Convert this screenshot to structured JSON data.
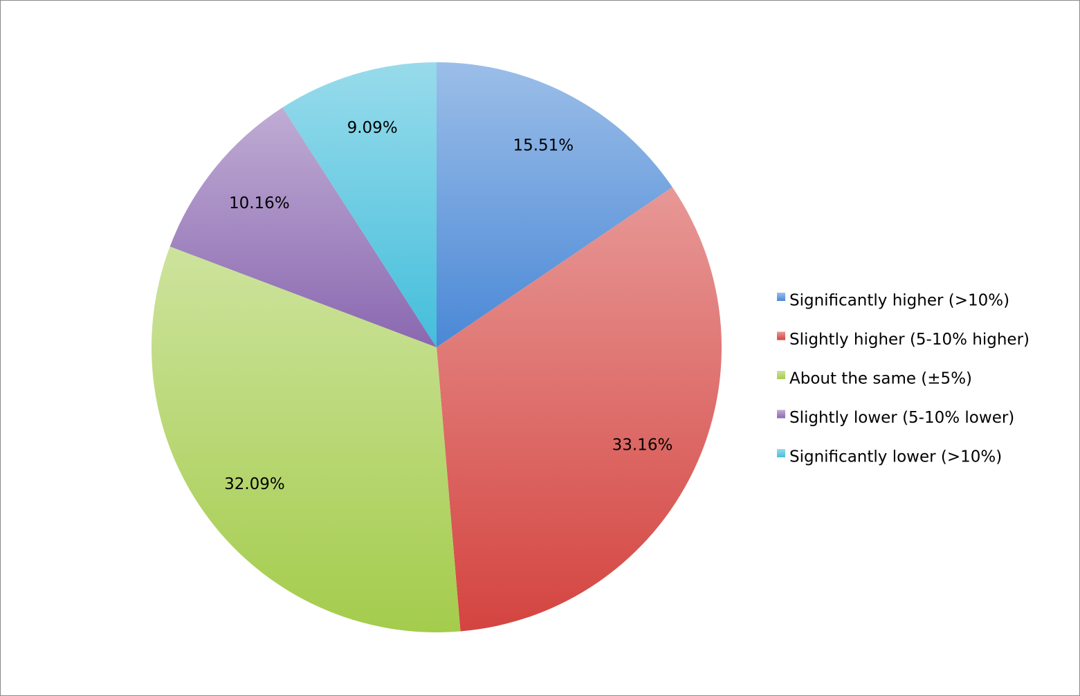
{
  "chart_data": {
    "type": "pie",
    "categories": [
      "Significantly higher (>10%)",
      "Slightly higher (5-10% higher)",
      "About the same (±5%)",
      "Slightly lower (5-10% lower)",
      "Significantly lower (>10%)"
    ],
    "values": [
      15.51,
      33.16,
      32.09,
      10.16,
      9.09
    ],
    "value_labels": [
      "15.51%",
      "33.16%",
      "32.09%",
      "10.16%",
      "9.09%"
    ],
    "colors": [
      "#4a88d6",
      "#d44440",
      "#a4cc4c",
      "#8a68b0",
      "#44bedb"
    ],
    "legend": "right"
  }
}
